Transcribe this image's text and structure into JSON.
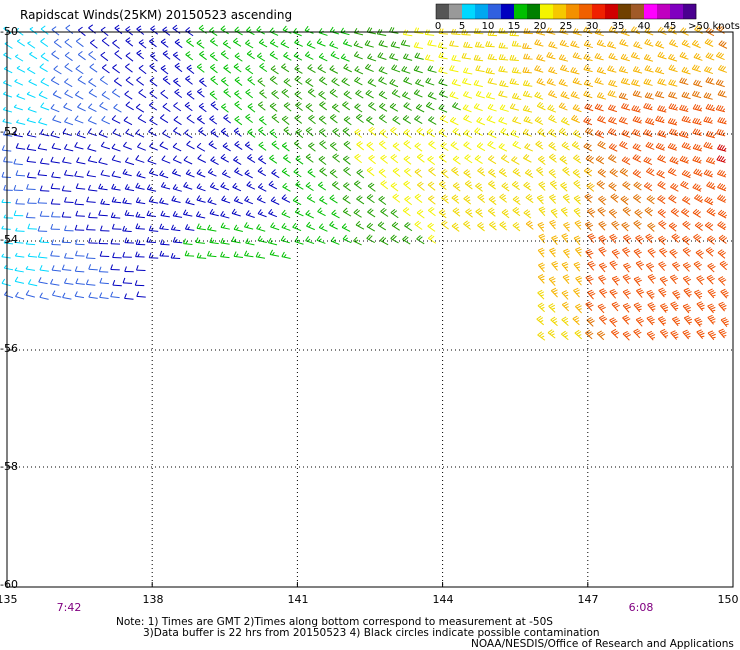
{
  "title": "Rapidscat Winds(25KM) 20150523 ascending",
  "colorbar": {
    "ticks": [
      "0",
      "5",
      "10",
      "15",
      "20",
      "25",
      "30",
      "35",
      "40",
      "45",
      ">50 knots"
    ],
    "colors": [
      "#555555",
      "#999999",
      "#00d8ff",
      "#00a8f0",
      "#3060e0",
      "#0000c0",
      "#00c000",
      "#008000",
      "#f4f400",
      "#f6c800",
      "#f49000",
      "#f06000",
      "#f02000",
      "#d00000",
      "#704000",
      "#a05a28",
      "#ff00ff",
      "#c000c0",
      "#8000c0",
      "#4a0090"
    ]
  },
  "axes": {
    "lat_labels": [
      "-50",
      "-52",
      "-54",
      "-56",
      "-58",
      "-60"
    ],
    "lon_labels": [
      "135",
      "138",
      "141",
      "144",
      "147",
      "150"
    ],
    "lat_range": [
      -60,
      -50
    ],
    "lon_range": [
      135,
      150
    ]
  },
  "times": [
    {
      "text": "7:42",
      "lon": 136.2
    },
    {
      "text": "6:08",
      "lon": 148.9
    }
  ],
  "notes": {
    "line1": "Note: 1) Times are GMT 2)Times along bottom correspond to measurement at -50S",
    "line2": "3)Data buffer is 22 hrs from 20150523 4) Black circles indicate possible contamination",
    "credit": "NOAA/NESDIS/Office of Research and Applications"
  },
  "wind_field": {
    "unit": "knots",
    "regions": [
      {
        "lon": [
          135,
          138
        ],
        "lat": [
          -55,
          -50
        ],
        "speed_range": [
          8,
          15
        ]
      },
      {
        "lon": [
          138,
          141
        ],
        "lat": [
          -54,
          -50
        ],
        "speed_range": [
          14,
          20
        ]
      },
      {
        "lon": [
          141,
          144
        ],
        "lat": [
          -54,
          -50
        ],
        "speed_range": [
          20,
          25
        ]
      },
      {
        "lon": [
          144,
          147
        ],
        "lat": [
          -56,
          -50
        ],
        "speed_range": [
          20,
          28
        ]
      },
      {
        "lon": [
          147,
          150
        ],
        "lat": [
          -56,
          -50
        ],
        "speed_range": [
          25,
          33
        ]
      }
    ]
  }
}
